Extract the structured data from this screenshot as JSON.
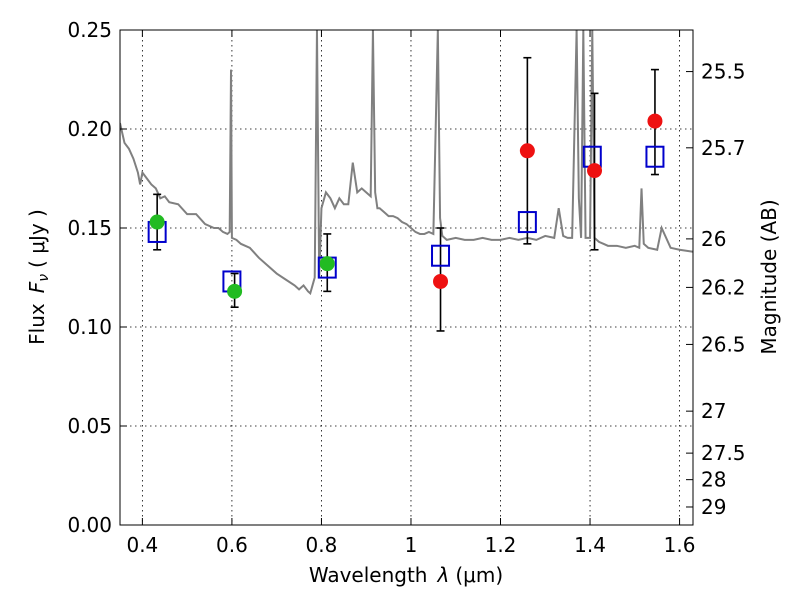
{
  "chart_data": {
    "type": "scatter",
    "xlabel_text": "Wavelength",
    "xlabel_symbol": "λ",
    "xlabel_unit": "(μm)",
    "ylabel_text": "Flux",
    "ylabel_symbol": "F",
    "ylabel_sub": "ν",
    "ylabel_unit": "( μJy )",
    "y2label": "Magnitude (AB)",
    "xlim": [
      0.35,
      1.63
    ],
    "ylim": [
      0.0,
      0.25
    ],
    "grid": true,
    "x_ticks": [
      {
        "value": 0.4,
        "label": "0.4"
      },
      {
        "value": 0.6,
        "label": "0.6"
      },
      {
        "value": 0.8,
        "label": "0.8"
      },
      {
        "value": 1.0,
        "label": "1"
      },
      {
        "value": 1.2,
        "label": "1.2"
      },
      {
        "value": 1.4,
        "label": "1.4"
      },
      {
        "value": 1.6,
        "label": "1.6"
      }
    ],
    "y_ticks": [
      {
        "value": 0.0,
        "label": "0.00"
      },
      {
        "value": 0.05,
        "label": "0.05"
      },
      {
        "value": 0.1,
        "label": "0.10"
      },
      {
        "value": 0.15,
        "label": "0.15"
      },
      {
        "value": 0.2,
        "label": "0.20"
      },
      {
        "value": 0.25,
        "label": "0.25"
      }
    ],
    "y2_ticks": [
      {
        "flux": 0.229,
        "label": "25.5"
      },
      {
        "flux": 0.1905,
        "label": "25.7"
      },
      {
        "flux": 0.1445,
        "label": "26"
      },
      {
        "flux": 0.12,
        "label": "26.2"
      },
      {
        "flux": 0.0912,
        "label": "26.5"
      },
      {
        "flux": 0.0575,
        "label": "27"
      },
      {
        "flux": 0.0363,
        "label": "27.5"
      },
      {
        "flux": 0.0229,
        "label": "28"
      },
      {
        "flux": 0.0091,
        "label": "29"
      }
    ],
    "series": [
      {
        "kind": "model-spectrum",
        "color": "#808080",
        "x": [
          0.35,
          0.36,
          0.37,
          0.38,
          0.39,
          0.395,
          0.4,
          0.41,
          0.42,
          0.43,
          0.44,
          0.45,
          0.46,
          0.48,
          0.5,
          0.52,
          0.54,
          0.56,
          0.57,
          0.58,
          0.59,
          0.595,
          0.598,
          0.6,
          0.61,
          0.62,
          0.64,
          0.66,
          0.68,
          0.7,
          0.72,
          0.74,
          0.75,
          0.76,
          0.77,
          0.775,
          0.78,
          0.785,
          0.79,
          0.795,
          0.8,
          0.81,
          0.82,
          0.83,
          0.84,
          0.85,
          0.86,
          0.87,
          0.88,
          0.89,
          0.9,
          0.91,
          0.915,
          0.92,
          0.925,
          0.93,
          0.94,
          0.95,
          0.96,
          0.97,
          0.98,
          0.99,
          1.0,
          1.01,
          1.02,
          1.03,
          1.04,
          1.05,
          1.06,
          1.065,
          1.07,
          1.075,
          1.08,
          1.1,
          1.12,
          1.14,
          1.16,
          1.18,
          1.2,
          1.22,
          1.24,
          1.26,
          1.28,
          1.3,
          1.32,
          1.33,
          1.34,
          1.35,
          1.36,
          1.37,
          1.375,
          1.38,
          1.385,
          1.39,
          1.4,
          1.405,
          1.41,
          1.42,
          1.43,
          1.44,
          1.46,
          1.48,
          1.5,
          1.51,
          1.515,
          1.52,
          1.53,
          1.55,
          1.56,
          1.58,
          1.6,
          1.63
        ],
        "y": [
          0.203,
          0.193,
          0.19,
          0.185,
          0.178,
          0.172,
          0.178,
          0.175,
          0.172,
          0.17,
          0.165,
          0.166,
          0.163,
          0.162,
          0.157,
          0.157,
          0.152,
          0.15,
          0.15,
          0.148,
          0.147,
          0.148,
          0.23,
          0.145,
          0.144,
          0.142,
          0.14,
          0.135,
          0.131,
          0.127,
          0.124,
          0.121,
          0.119,
          0.121,
          0.118,
          0.117,
          0.121,
          0.125,
          0.25,
          0.125,
          0.16,
          0.168,
          0.165,
          0.16,
          0.165,
          0.162,
          0.162,
          0.183,
          0.168,
          0.17,
          0.168,
          0.166,
          0.25,
          0.168,
          0.16,
          0.16,
          0.158,
          0.156,
          0.156,
          0.155,
          0.153,
          0.152,
          0.15,
          0.148,
          0.147,
          0.147,
          0.148,
          0.147,
          0.25,
          0.155,
          0.146,
          0.145,
          0.144,
          0.145,
          0.144,
          0.144,
          0.145,
          0.144,
          0.144,
          0.145,
          0.144,
          0.145,
          0.144,
          0.146,
          0.145,
          0.16,
          0.146,
          0.145,
          0.145,
          0.25,
          0.165,
          0.145,
          0.25,
          0.145,
          0.145,
          0.25,
          0.145,
          0.143,
          0.142,
          0.141,
          0.141,
          0.14,
          0.141,
          0.14,
          0.17,
          0.142,
          0.14,
          0.139,
          0.15,
          0.14,
          0.139,
          0.138
        ]
      },
      {
        "kind": "model-fluxes",
        "color": "#0000cc",
        "x": [
          0.433,
          0.6,
          0.813,
          1.066,
          1.26,
          1.405,
          1.545
        ],
        "y": [
          0.148,
          0.123,
          0.13,
          0.136,
          0.153,
          0.186,
          0.186
        ]
      },
      {
        "kind": "optical-photometry",
        "color": "#22bb22",
        "x": [
          0.433,
          0.606,
          0.813
        ],
        "y": [
          0.153,
          0.118,
          0.132
        ],
        "err_lo": [
          0.139,
          0.11,
          0.118
        ],
        "err_hi": [
          0.167,
          0.127,
          0.147
        ]
      },
      {
        "kind": "nir-photometry",
        "color": "#ee1111",
        "x": [
          1.066,
          1.26,
          1.41,
          1.545
        ],
        "y": [
          0.123,
          0.189,
          0.179,
          0.204
        ],
        "err_lo": [
          0.098,
          0.142,
          0.139,
          0.177
        ],
        "err_hi": [
          0.15,
          0.236,
          0.218,
          0.23
        ]
      }
    ]
  }
}
